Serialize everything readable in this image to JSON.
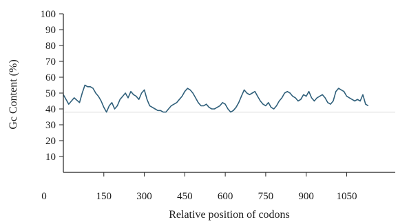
{
  "chart_data": {
    "type": "line",
    "xlabel": "Relative position of codons",
    "ylabel": "Gc Content (%)",
    "xlim": [
      0,
      1230
    ],
    "ylim": [
      0,
      100
    ],
    "xticks": [
      0,
      150,
      300,
      450,
      600,
      750,
      900,
      1050
    ],
    "xtick_labels": [
      "0",
      "150",
      "300",
      "450",
      "600",
      "750",
      "900",
      "1050"
    ],
    "yticks": [
      10,
      20,
      30,
      40,
      50,
      60,
      70,
      80,
      90,
      100
    ],
    "ytick_labels": [
      "10",
      "20",
      "30",
      "40",
      "50",
      "60",
      "70",
      "80",
      "90",
      "100"
    ],
    "grid": false,
    "reference_line": {
      "y": 38,
      "color": "#d9d9d9"
    },
    "series": [
      {
        "color": "#2f5f7a",
        "x": [
          0,
          20,
          40,
          60,
          70,
          80,
          90,
          100,
          110,
          120,
          130,
          140,
          150,
          160,
          170,
          180,
          190,
          200,
          210,
          220,
          230,
          240,
          250,
          260,
          270,
          280,
          290,
          300,
          310,
          320,
          330,
          340,
          350,
          360,
          370,
          380,
          390,
          400,
          410,
          420,
          430,
          440,
          450,
          460,
          470,
          480,
          490,
          500,
          510,
          520,
          530,
          540,
          550,
          560,
          570,
          580,
          590,
          600,
          610,
          620,
          630,
          640,
          650,
          660,
          670,
          680,
          690,
          700,
          710,
          720,
          730,
          740,
          750,
          760,
          770,
          780,
          790,
          800,
          810,
          820,
          830,
          840,
          850,
          860,
          870,
          880,
          890,
          900,
          910,
          920,
          930,
          940,
          950,
          960,
          970,
          980,
          990,
          1000,
          1010,
          1020,
          1030,
          1040,
          1050,
          1060,
          1070,
          1080,
          1090,
          1100,
          1110,
          1120,
          1130
        ],
        "y": [
          49,
          43,
          47,
          44,
          50,
          55,
          54,
          54,
          53,
          50,
          48,
          45,
          41,
          38,
          42,
          44,
          40,
          42,
          46,
          48,
          50,
          47,
          51,
          49,
          48,
          46,
          50,
          52,
          46,
          42,
          41,
          40,
          39,
          39,
          38,
          38,
          40,
          42,
          43,
          44,
          46,
          48,
          51,
          53,
          52,
          50,
          47,
          44,
          42,
          42,
          43,
          41,
          40,
          40,
          41,
          42,
          44,
          43,
          40,
          38,
          39,
          41,
          44,
          48,
          52,
          50,
          49,
          50,
          51,
          48,
          45,
          43,
          42,
          44,
          41,
          40,
          42,
          45,
          47,
          50,
          51,
          50,
          48,
          47,
          45,
          46,
          49,
          48,
          51,
          47,
          45,
          47,
          48,
          49,
          47,
          44,
          43,
          45,
          51,
          53,
          52,
          51,
          48,
          47,
          46,
          45,
          46,
          45,
          49,
          43,
          42
        ]
      }
    ]
  }
}
